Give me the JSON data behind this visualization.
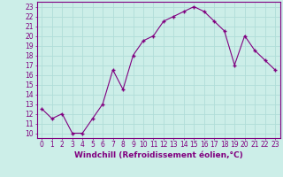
{
  "x": [
    0,
    1,
    2,
    3,
    4,
    5,
    6,
    7,
    8,
    9,
    10,
    11,
    12,
    13,
    14,
    15,
    16,
    17,
    18,
    19,
    20,
    21,
    22,
    23
  ],
  "y": [
    12.5,
    11.5,
    12.0,
    10.0,
    10.0,
    11.5,
    13.0,
    16.5,
    14.5,
    18.0,
    19.5,
    20.0,
    21.5,
    22.0,
    22.5,
    23.0,
    22.5,
    21.5,
    20.5,
    17.0,
    20.0,
    18.5,
    17.5,
    16.5
  ],
  "line_color": "#800080",
  "marker": "+",
  "marker_size": 3,
  "linewidth": 0.8,
  "xlabel": "Windchill (Refroidissement éolien,°C)",
  "xlim": [
    -0.5,
    23.5
  ],
  "ylim": [
    9.5,
    23.5
  ],
  "yticks": [
    10,
    11,
    12,
    13,
    14,
    15,
    16,
    17,
    18,
    19,
    20,
    21,
    22,
    23
  ],
  "xticks": [
    0,
    1,
    2,
    3,
    4,
    5,
    6,
    7,
    8,
    9,
    10,
    11,
    12,
    13,
    14,
    15,
    16,
    17,
    18,
    19,
    20,
    21,
    22,
    23
  ],
  "background_color": "#cceee8",
  "grid_color": "#b0ddd8",
  "line_border_color": "#800080",
  "label_color": "#800080",
  "xlabel_fontsize": 6.5,
  "tick_fontsize": 5.5
}
